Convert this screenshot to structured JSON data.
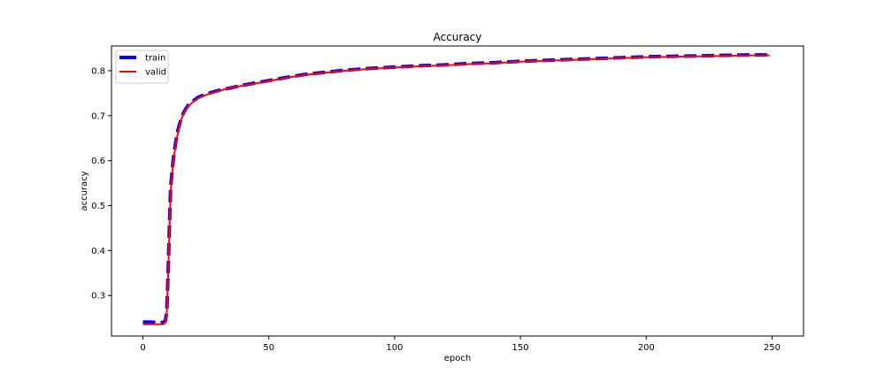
{
  "chart_data": {
    "type": "line",
    "title": "Accuracy",
    "xlabel": "epoch",
    "ylabel": "accuracy",
    "xlim": [
      -12.5,
      262.5
    ],
    "ylim": [
      0.21,
      0.855
    ],
    "xticks": [
      0,
      50,
      100,
      150,
      200,
      250
    ],
    "yticks": [
      0.3,
      0.4,
      0.5,
      0.6,
      0.7,
      0.8
    ],
    "grid": false,
    "legend_position": "upper-left",
    "series": [
      {
        "name": "train",
        "color": "#0000ff",
        "style": "dashed",
        "points": [
          [
            0,
            0.241
          ],
          [
            3,
            0.241
          ],
          [
            5,
            0.24
          ],
          [
            8,
            0.24
          ],
          [
            9,
            0.245
          ],
          [
            9.5,
            0.27
          ],
          [
            10,
            0.35
          ],
          [
            10.5,
            0.45
          ],
          [
            11,
            0.54
          ],
          [
            12,
            0.6
          ],
          [
            13,
            0.64
          ],
          [
            14,
            0.67
          ],
          [
            15,
            0.69
          ],
          [
            16,
            0.705
          ],
          [
            17,
            0.715
          ],
          [
            18,
            0.723
          ],
          [
            20,
            0.733
          ],
          [
            22,
            0.741
          ],
          [
            25,
            0.748
          ],
          [
            30,
            0.756
          ],
          [
            35,
            0.762
          ],
          [
            40,
            0.768
          ],
          [
            45,
            0.773
          ],
          [
            50,
            0.778
          ],
          [
            55,
            0.783
          ],
          [
            60,
            0.788
          ],
          [
            65,
            0.792
          ],
          [
            70,
            0.795
          ],
          [
            75,
            0.798
          ],
          [
            80,
            0.801
          ],
          [
            85,
            0.803
          ],
          [
            90,
            0.805
          ],
          [
            100,
            0.808
          ],
          [
            110,
            0.811
          ],
          [
            120,
            0.813
          ],
          [
            130,
            0.816
          ],
          [
            140,
            0.818
          ],
          [
            150,
            0.821
          ],
          [
            160,
            0.823
          ],
          [
            170,
            0.825
          ],
          [
            180,
            0.827
          ],
          [
            190,
            0.829
          ],
          [
            200,
            0.831
          ],
          [
            210,
            0.832
          ],
          [
            220,
            0.833
          ],
          [
            230,
            0.834
          ],
          [
            240,
            0.835
          ],
          [
            249,
            0.835
          ]
        ]
      },
      {
        "name": "valid",
        "color": "#ff0000",
        "style": "solid",
        "points": [
          [
            0,
            0.236
          ],
          [
            3,
            0.236
          ],
          [
            5,
            0.236
          ],
          [
            8,
            0.236
          ],
          [
            9,
            0.24
          ],
          [
            9.5,
            0.265
          ],
          [
            10,
            0.34
          ],
          [
            10.5,
            0.44
          ],
          [
            11,
            0.53
          ],
          [
            12,
            0.595
          ],
          [
            13,
            0.635
          ],
          [
            14,
            0.665
          ],
          [
            15,
            0.688
          ],
          [
            16,
            0.703
          ],
          [
            17,
            0.713
          ],
          [
            18,
            0.721
          ],
          [
            20,
            0.731
          ],
          [
            22,
            0.739
          ],
          [
            25,
            0.746
          ],
          [
            30,
            0.755
          ],
          [
            35,
            0.762
          ],
          [
            40,
            0.767
          ],
          [
            45,
            0.772
          ],
          [
            50,
            0.777
          ],
          [
            55,
            0.782
          ],
          [
            60,
            0.787
          ],
          [
            65,
            0.791
          ],
          [
            70,
            0.794
          ],
          [
            75,
            0.797
          ],
          [
            80,
            0.8
          ],
          [
            85,
            0.802
          ],
          [
            90,
            0.804
          ],
          [
            100,
            0.807
          ],
          [
            110,
            0.81
          ],
          [
            120,
            0.812
          ],
          [
            130,
            0.815
          ],
          [
            140,
            0.817
          ],
          [
            150,
            0.82
          ],
          [
            160,
            0.822
          ],
          [
            170,
            0.824
          ],
          [
            180,
            0.826
          ],
          [
            190,
            0.828
          ],
          [
            200,
            0.83
          ],
          [
            210,
            0.831
          ],
          [
            220,
            0.832
          ],
          [
            230,
            0.833
          ],
          [
            240,
            0.834
          ],
          [
            249,
            0.834
          ]
        ]
      }
    ]
  }
}
